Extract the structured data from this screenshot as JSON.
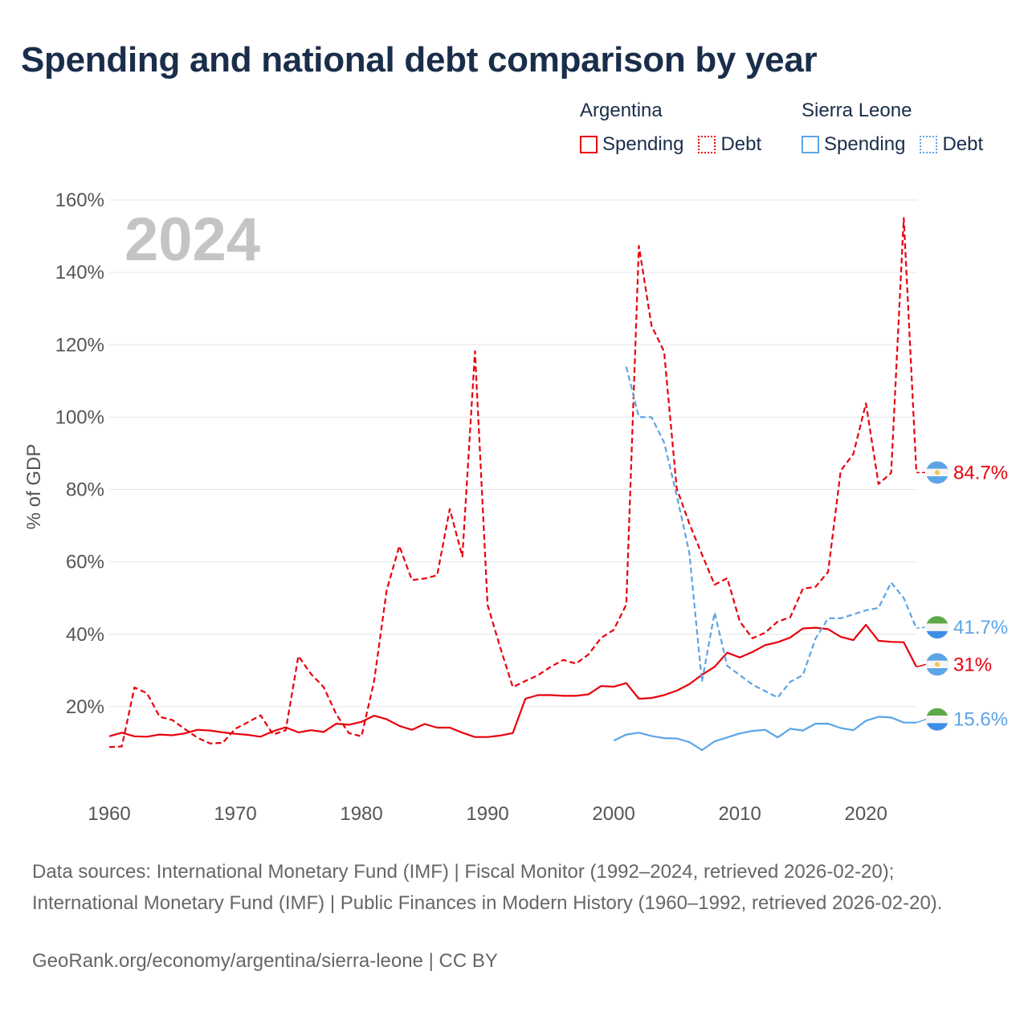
{
  "title": "Spending and national debt comparison by year",
  "legend": {
    "groups": [
      {
        "country": "Argentina",
        "spending_label": "Spending",
        "debt_label": "Debt"
      },
      {
        "country": "Sierra Leone",
        "spending_label": "Spending",
        "debt_label": "Debt"
      }
    ]
  },
  "source": "Data sources: International Monetary Fund (IMF) | Fiscal Monitor (1992–2024, retrieved 2026-02-20); International Monetary Fund (IMF) | Public Finances in Modern History (1960–1992, retrieved 2026-02-20).",
  "credit": "GeoRank.org/economy/argentina/sierra-leone | CC BY",
  "colors": {
    "argentina": "#e8000b",
    "sierra_leone": "#5ba4e6",
    "grid": "#e6e6e6",
    "axis_text": "#555555",
    "year_watermark": "#c4c4c4"
  },
  "chart_data": {
    "type": "line",
    "ylabel": "% of GDP",
    "xlabel": "",
    "xlim": [
      1960,
      2024
    ],
    "ylim": [
      0,
      160
    ],
    "year_label": "2024",
    "x_ticks": [
      1960,
      1970,
      1980,
      1990,
      2000,
      2010,
      2020
    ],
    "x_tick_labels": [
      "1960",
      "1970",
      "1980",
      "1990",
      "2000",
      "2010",
      "2020"
    ],
    "y_ticks": [
      20,
      40,
      60,
      80,
      100,
      120,
      140,
      160
    ],
    "y_tick_labels": [
      "20%",
      "40%",
      "60%",
      "80%",
      "100%",
      "120%",
      "140%",
      "160%"
    ],
    "series": [
      {
        "name": "Argentina Spending",
        "country": "Argentina",
        "measure": "Spending",
        "color": "#e8000b",
        "style": "solid",
        "end_label": "31%",
        "flag": "argentina",
        "x": [
          1960,
          1961,
          1962,
          1963,
          1964,
          1965,
          1966,
          1967,
          1968,
          1969,
          1970,
          1971,
          1972,
          1973,
          1974,
          1975,
          1976,
          1977,
          1978,
          1979,
          1980,
          1981,
          1982,
          1983,
          1984,
          1985,
          1986,
          1987,
          1988,
          1989,
          1990,
          1991,
          1992,
          1993,
          1994,
          1995,
          1996,
          1997,
          1998,
          1999,
          2000,
          2001,
          2002,
          2003,
          2004,
          2005,
          2006,
          2007,
          2008,
          2009,
          2010,
          2011,
          2012,
          2013,
          2014,
          2015,
          2016,
          2017,
          2018,
          2019,
          2020,
          2021,
          2022,
          2023,
          2024
        ],
        "values": [
          11.8,
          12.8,
          11.8,
          11.7,
          12.3,
          12.1,
          12.6,
          13.6,
          13.4,
          12.9,
          12.5,
          12.2,
          11.7,
          13.2,
          14.3,
          12.9,
          13.5,
          13.0,
          15.3,
          15.0,
          15.8,
          17.5,
          16.5,
          14.7,
          13.6,
          15.2,
          14.2,
          14.2,
          12.8,
          11.6,
          11.6,
          12.0,
          12.7,
          22.2,
          23.2,
          23.2,
          23.0,
          23.0,
          23.4,
          25.7,
          25.5,
          26.5,
          22.2,
          22.4,
          23.2,
          24.4,
          26.2,
          28.8,
          31.0,
          34.9,
          33.6,
          35.1,
          37.0,
          37.8,
          39.1,
          41.6,
          41.8,
          41.4,
          39.3,
          38.4,
          42.6,
          38.2,
          37.9,
          37.8,
          31.0
        ]
      },
      {
        "name": "Argentina Debt",
        "country": "Argentina",
        "measure": "Debt",
        "color": "#e8000b",
        "style": "dashed",
        "end_label": "84.7%",
        "flag": "argentina",
        "x": [
          1960,
          1961,
          1962,
          1963,
          1964,
          1965,
          1966,
          1967,
          1968,
          1969,
          1970,
          1971,
          1972,
          1973,
          1974,
          1975,
          1976,
          1977,
          1978,
          1979,
          1980,
          1981,
          1982,
          1983,
          1984,
          1985,
          1986,
          1987,
          1988,
          1989,
          1990,
          1991,
          1992,
          1993,
          1994,
          1995,
          1996,
          1997,
          1998,
          1999,
          2000,
          2001,
          2002,
          2003,
          2004,
          2005,
          2006,
          2007,
          2008,
          2009,
          2010,
          2011,
          2012,
          2013,
          2014,
          2015,
          2016,
          2017,
          2018,
          2019,
          2020,
          2021,
          2022,
          2023,
          2024
        ],
        "values": [
          8.8,
          9.0,
          25.3,
          23.7,
          17.2,
          16.3,
          13.8,
          11.4,
          9.8,
          10.0,
          13.9,
          15.7,
          17.6,
          12.3,
          13.5,
          34.0,
          29.0,
          25.4,
          17.9,
          12.7,
          11.8,
          27.0,
          52.2,
          64.4,
          55.0,
          55.4,
          56.3,
          74.6,
          61.5,
          118.2,
          48.1,
          36.4,
          25.4,
          27.1,
          28.7,
          31.0,
          32.9,
          31.9,
          34.4,
          39.0,
          41.2,
          48.2,
          147.3,
          125.3,
          118.1,
          80.3,
          70.6,
          62.1,
          53.7,
          55.5,
          43.5,
          38.9,
          40.4,
          43.5,
          44.7,
          52.6,
          53.1,
          57.2,
          85.2,
          89.8,
          103.8,
          81.5,
          84.6,
          155.0,
          84.7
        ]
      },
      {
        "name": "Sierra Leone Spending",
        "country": "Sierra Leone",
        "measure": "Spending",
        "color": "#5ba4e6",
        "style": "solid",
        "end_label": "15.6%",
        "flag": "sierra_leone",
        "x": [
          2000,
          2001,
          2002,
          2003,
          2004,
          2005,
          2006,
          2007,
          2008,
          2009,
          2010,
          2011,
          2012,
          2013,
          2014,
          2015,
          2016,
          2017,
          2018,
          2019,
          2020,
          2021,
          2022,
          2023,
          2024
        ],
        "values": [
          10.6,
          12.3,
          12.8,
          11.9,
          11.3,
          11.2,
          10.2,
          8.0,
          10.4,
          11.5,
          12.6,
          13.3,
          13.6,
          11.5,
          13.9,
          13.4,
          15.3,
          15.3,
          14.1,
          13.5,
          16.1,
          17.2,
          17.0,
          15.6,
          15.6
        ]
      },
      {
        "name": "Sierra Leone Debt",
        "country": "Sierra Leone",
        "measure": "Debt",
        "color": "#5ba4e6",
        "style": "dashed",
        "end_label": "41.7%",
        "flag": "sierra_leone",
        "x": [
          2001,
          2002,
          2003,
          2004,
          2005,
          2006,
          2007,
          2008,
          2009,
          2010,
          2011,
          2012,
          2013,
          2014,
          2015,
          2016,
          2017,
          2018,
          2019,
          2020,
          2021,
          2022,
          2023,
          2024
        ],
        "values": [
          113.9,
          100.0,
          100.0,
          93.0,
          78.4,
          62.5,
          26.9,
          46.0,
          31.3,
          28.7,
          26.1,
          24.3,
          22.5,
          26.9,
          28.7,
          38.8,
          44.4,
          44.4,
          45.5,
          46.6,
          47.3,
          54.3,
          50.0,
          41.7
        ]
      }
    ]
  }
}
